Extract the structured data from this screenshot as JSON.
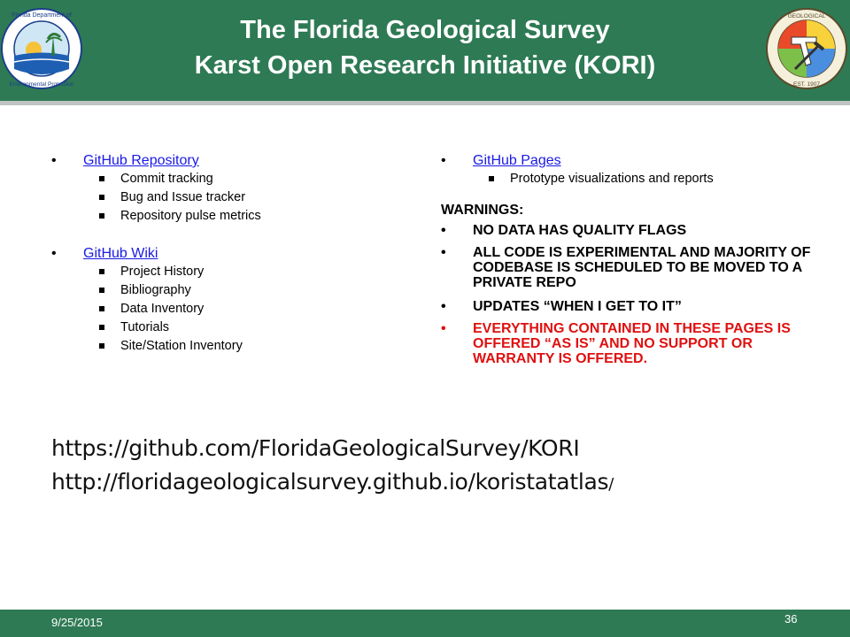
{
  "header": {
    "title_line1": "The Florida Geological Survey",
    "title_line2": "Karst Open Research Initiative (KORI)",
    "left_logo_text": "Florida Department of Environmental Protection",
    "right_logo_text": "FLORIDA GEOLOGICAL SURVEY",
    "right_logo_est": "EST. 1907"
  },
  "left_column": {
    "item1": {
      "link": "GitHub Repository",
      "subs": [
        "Commit  tracking",
        "Bug and Issue tracker",
        "Repository  pulse metrics"
      ]
    },
    "item2": {
      "link": "GitHub  Wiki",
      "subs": [
        "Project  History",
        "Bibliography",
        "Data Inventory",
        "Tutorials",
        "Site/Station  Inventory"
      ]
    }
  },
  "right_column": {
    "item1": {
      "link": "GitHub  Pages",
      "subs": [
        "Prototype  visualizations  and reports"
      ]
    },
    "warnings_heading": "WARNINGS:",
    "warnings": [
      "NO DATA HAS QUALITY FLAGS",
      "ALL CODE IS EXPERIMENTAL AND MAJORITY OF CODEBASE IS SCHEDULED  TO BE MOVED TO A PRIVATE REPO",
      "UPDATES “WHEN I GET TO IT”",
      "EVERYTHING CONTAINED IN THESE PAGES IS OFFERED “AS IS” AND NO SUPPORT OR WARRANTY IS OFFERED."
    ]
  },
  "urls": {
    "repo": "https://github.com/FloridaGeologicalSurvey/KORI",
    "pages": "http://floridageologicalsurvey.github.io/koristatatlas",
    "pages_suffix": "/"
  },
  "footer": {
    "date": "9/25/2015",
    "page_number": "36"
  },
  "colors": {
    "band": "#2E7A54",
    "link": "#1a1ae6",
    "warning_red": "#e01010"
  }
}
